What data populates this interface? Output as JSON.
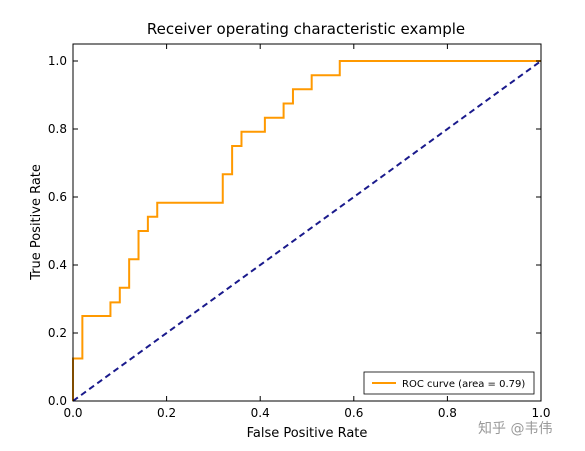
{
  "chart_data": {
    "type": "line",
    "title": "Receiver operating characteristic example",
    "xlabel": "False Positive Rate",
    "ylabel": "True Positive Rate",
    "xlim": [
      0.0,
      1.0
    ],
    "ylim": [
      0.0,
      1.05
    ],
    "grid": false,
    "legend_position": "lower-right",
    "x_ticks": [
      "0.0",
      "0.2",
      "0.4",
      "0.6",
      "0.8",
      "1.0"
    ],
    "y_ticks": [
      "0.0",
      "0.2",
      "0.4",
      "0.6",
      "0.8",
      "1.0"
    ],
    "series": [
      {
        "name": "ROC curve (area = 0.79)",
        "color": "#ff9900",
        "style": "solid",
        "x": [
          0.0,
          0.0,
          0.02,
          0.02,
          0.08,
          0.08,
          0.1,
          0.1,
          0.12,
          0.12,
          0.14,
          0.14,
          0.16,
          0.16,
          0.18,
          0.18,
          0.32,
          0.32,
          0.34,
          0.34,
          0.36,
          0.36,
          0.41,
          0.41,
          0.45,
          0.45,
          0.47,
          0.47,
          0.51,
          0.51,
          0.57,
          0.57,
          1.0
        ],
        "y": [
          0.0,
          0.125,
          0.125,
          0.25,
          0.25,
          0.29,
          0.29,
          0.333,
          0.333,
          0.417,
          0.417,
          0.5,
          0.5,
          0.542,
          0.542,
          0.583,
          0.583,
          0.667,
          0.667,
          0.75,
          0.75,
          0.792,
          0.792,
          0.833,
          0.833,
          0.875,
          0.875,
          0.917,
          0.917,
          0.958,
          0.958,
          1.0,
          1.0
        ]
      },
      {
        "name": "",
        "color": "#1a1a8c",
        "style": "dashed",
        "x": [
          0.0,
          1.0
        ],
        "y": [
          0.0,
          1.0
        ]
      }
    ]
  },
  "watermark": "知乎 @韦伟"
}
